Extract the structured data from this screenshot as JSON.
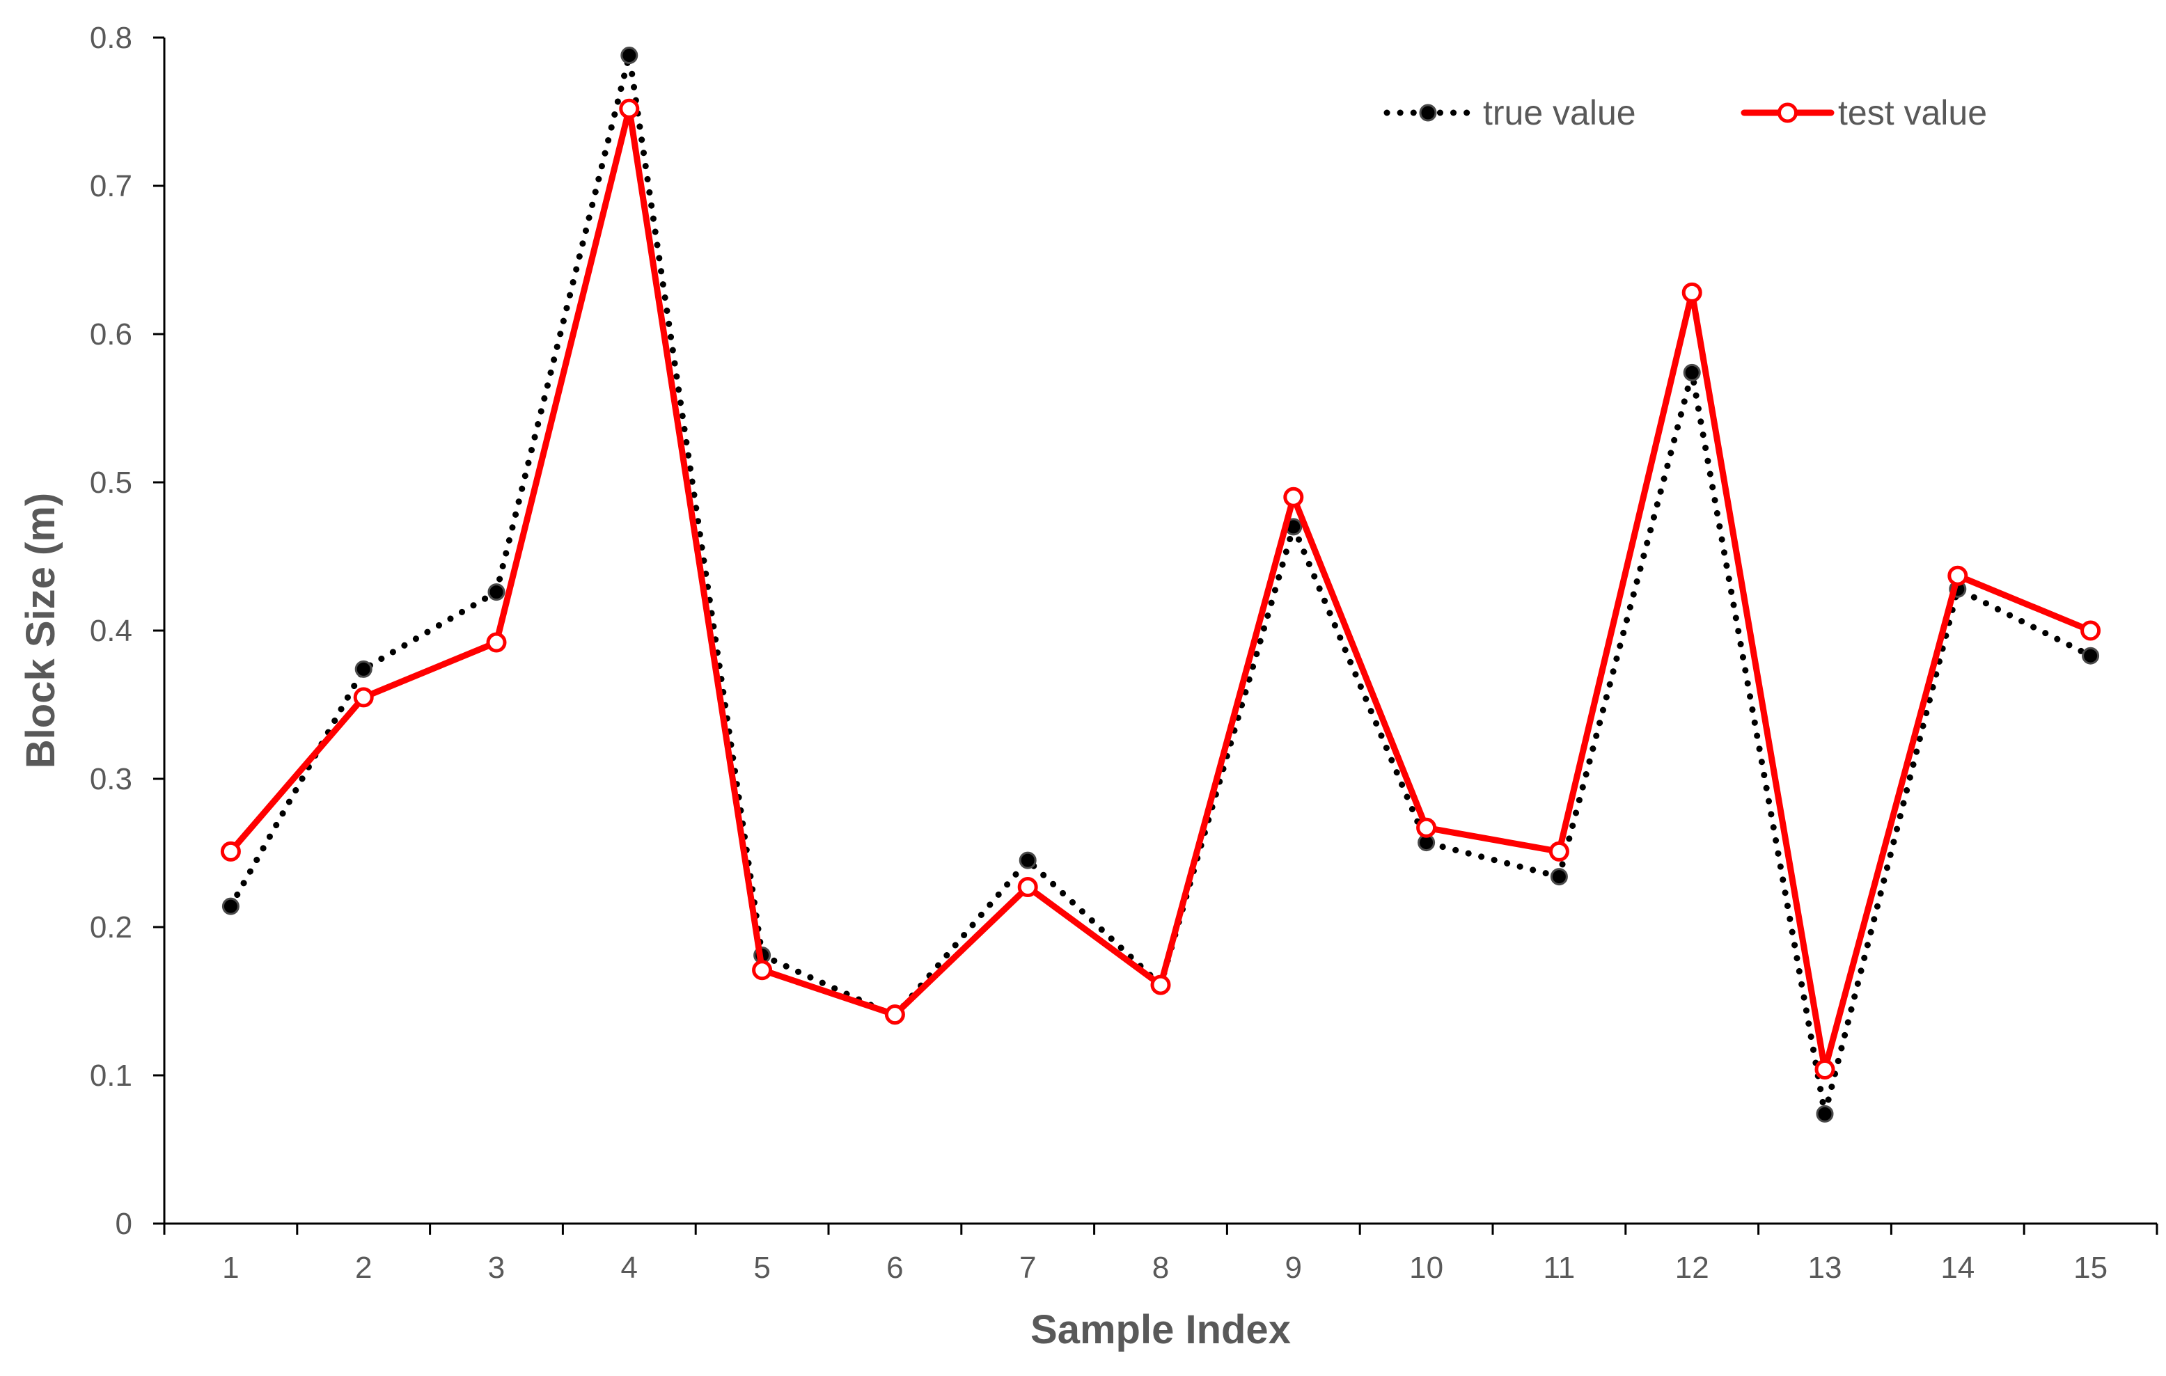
{
  "chart_data": {
    "type": "line",
    "xlabel": "Sample Index",
    "ylabel": "Block Size (m)",
    "categories": [
      "1",
      "2",
      "3",
      "4",
      "5",
      "6",
      "7",
      "8",
      "9",
      "10",
      "11",
      "12",
      "13",
      "14",
      "15"
    ],
    "ylim": [
      0,
      0.8
    ],
    "yticks": [
      "0",
      "0.1",
      "0.2",
      "0.3",
      "0.4",
      "0.5",
      "0.6",
      "0.7",
      "0.8"
    ],
    "grid": false,
    "legend_position": "top-right",
    "series": [
      {
        "name": "true value",
        "color": "#000000",
        "style": "dotted",
        "marker": "filled-circle",
        "values": [
          0.214,
          0.374,
          0.426,
          0.788,
          0.181,
          0.14,
          0.245,
          0.161,
          0.47,
          0.257,
          0.234,
          0.574,
          0.074,
          0.428,
          0.383
        ]
      },
      {
        "name": "test value",
        "color": "#ff0000",
        "style": "solid",
        "marker": "open-circle",
        "values": [
          0.251,
          0.355,
          0.392,
          0.752,
          0.171,
          0.141,
          0.227,
          0.161,
          0.49,
          0.267,
          0.251,
          0.628,
          0.104,
          0.437,
          0.4
        ]
      }
    ]
  }
}
